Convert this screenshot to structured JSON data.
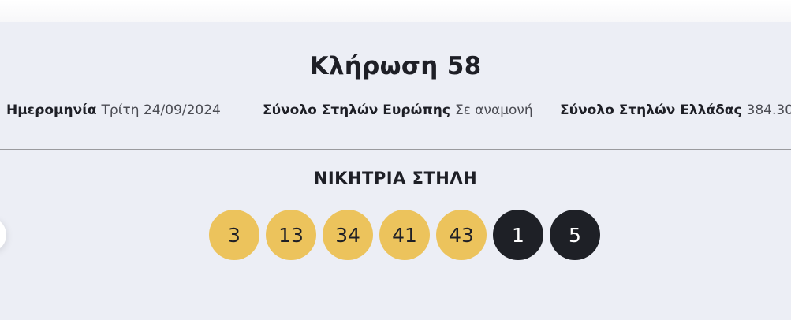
{
  "draw": {
    "title": "Κλήρωση 58",
    "info": [
      {
        "label": "Ημερομηνία",
        "value": "Τρίτη 24/09/2024"
      },
      {
        "label": "Σύνολο Στηλών Ευρώπης",
        "value": "Σε αναμονή"
      },
      {
        "label": "Σύνολο Στηλών Ελλάδας",
        "value": "384.30"
      }
    ],
    "winning_title": "ΝΙΚΗΤΡΙΑ ΣΤΗΛΗ",
    "numbers": [
      "3",
      "13",
      "34",
      "41",
      "43"
    ],
    "stars": [
      "1",
      "5"
    ]
  },
  "colors": {
    "main_ball": "#ecc35c",
    "star_ball": "#1e2026",
    "background": "#eceef5"
  },
  "icons": {
    "prev": "carousel-prev-button"
  }
}
